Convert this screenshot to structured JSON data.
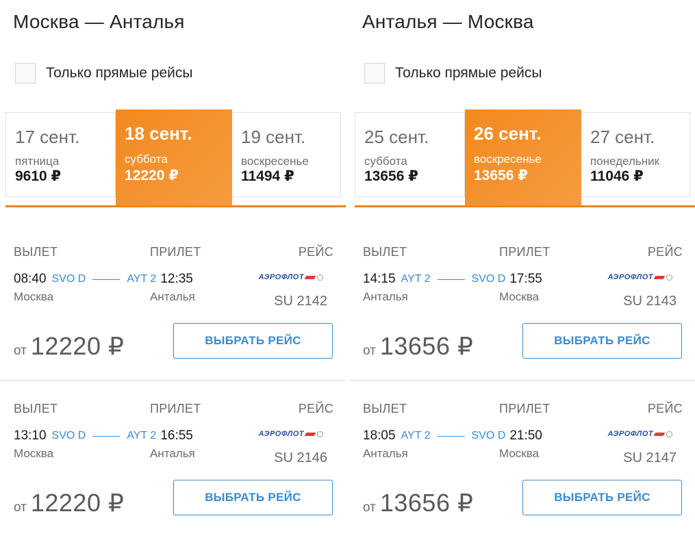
{
  "panels": [
    {
      "title": "Москва — Анталья",
      "direct_label": "Только прямые рейсы",
      "dates": [
        {
          "day": "17 сент.",
          "weekday": "пятница",
          "price": "9610 ₽"
        },
        {
          "day": "18 сент.",
          "weekday": "суббота",
          "price": "12220 ₽"
        },
        {
          "day": "19 сент.",
          "weekday": "воскресенье",
          "price": "11494 ₽"
        }
      ],
      "headers": {
        "dep": "ВЫЛЕТ",
        "arr": "ПРИЛЕТ",
        "flight": "РЕЙС"
      },
      "flights": [
        {
          "dep_time": "08:40",
          "dep_code": "SVO D",
          "arr_code": "AYT 2",
          "arr_time": "12:35",
          "dep_city": "Москва",
          "arr_city": "Анталья",
          "airline": "АЭРОФЛОТ",
          "flight_no": "SU 2142",
          "price_from": "от",
          "price": "12220 ₽",
          "button": "ВЫБРАТЬ РЕЙС"
        },
        {
          "dep_time": "13:10",
          "dep_code": "SVO D",
          "arr_code": "AYT 2",
          "arr_time": "16:55",
          "dep_city": "Москва",
          "arr_city": "Анталья",
          "airline": "АЭРОФЛОТ",
          "flight_no": "SU 2146",
          "price_from": "от",
          "price": "12220 ₽",
          "button": "ВЫБРАТЬ РЕЙС"
        }
      ]
    },
    {
      "title": "Анталья — Москва",
      "direct_label": "Только прямые рейсы",
      "dates": [
        {
          "day": "25 сент.",
          "weekday": "суббота",
          "price": "13656 ₽"
        },
        {
          "day": "26 сент.",
          "weekday": "воскресенье",
          "price": "13656 ₽"
        },
        {
          "day": "27 сент.",
          "weekday": "понедельник",
          "price": "11046 ₽"
        }
      ],
      "headers": {
        "dep": "ВЫЛЕТ",
        "arr": "ПРИЛЕТ",
        "flight": "РЕЙС"
      },
      "flights": [
        {
          "dep_time": "14:15",
          "dep_code": "AYT 2",
          "arr_code": "SVO D",
          "arr_time": "17:55",
          "dep_city": "Анталья",
          "arr_city": "Москва",
          "airline": "АЭРОФЛОТ",
          "flight_no": "SU 2143",
          "price_from": "от",
          "price": "13656 ₽",
          "button": "ВЫБРАТЬ РЕЙС"
        },
        {
          "dep_time": "18:05",
          "dep_code": "AYT 2",
          "arr_code": "SVO D",
          "arr_time": "21:50",
          "dep_city": "Анталья",
          "arr_city": "Москва",
          "airline": "АЭРОФЛОТ",
          "flight_no": "SU 2147",
          "price_from": "от",
          "price": "13656 ₽",
          "button": "ВЫБРАТЬ РЕЙС"
        }
      ]
    }
  ],
  "colors": {
    "accent": "#f28a1f",
    "link": "#3a8ad0",
    "airline_blue": "#2553a0",
    "airline_red": "#e03a3a"
  }
}
